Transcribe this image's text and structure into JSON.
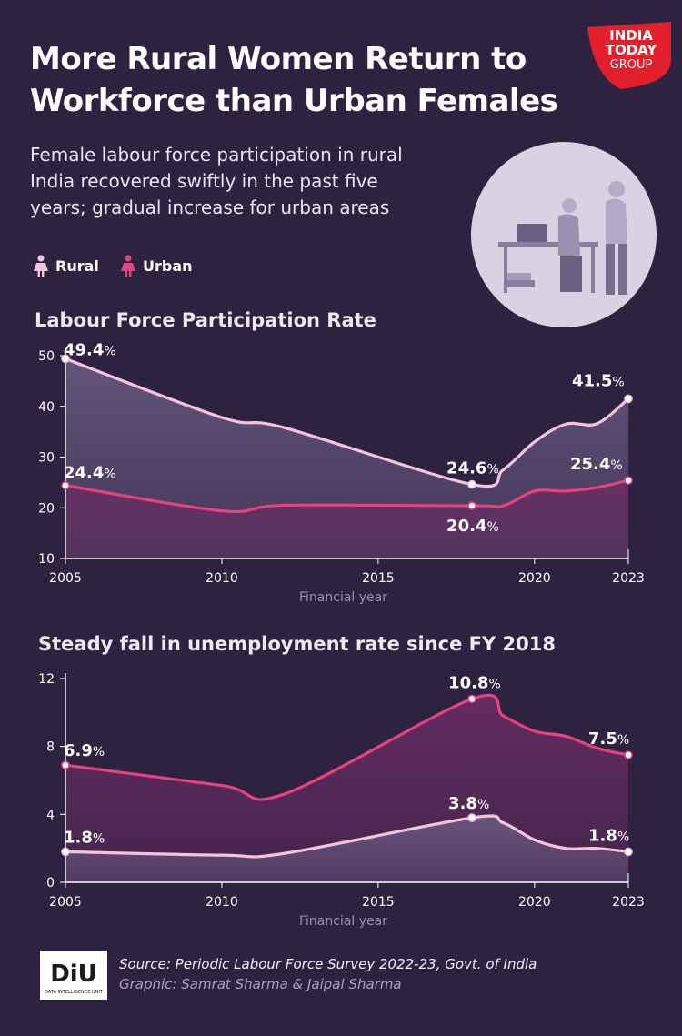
{
  "header": {
    "title_line1": "More Rural Women Return to",
    "title_line2": "Workforce than Urban Females",
    "subtitle_line1": "Female labour force participation in rural",
    "subtitle_line2": "India recovered swiftly in the past five",
    "subtitle_line3": "years; gradual increase for urban areas",
    "logo_line1": "INDIA",
    "logo_line2": "TODAY",
    "logo_line3": "GROUP"
  },
  "legend": {
    "rural": "Rural",
    "urban": "Urban"
  },
  "colors": {
    "background": "#2e2241",
    "rural": "#f6c3df",
    "urban": "#e3437e",
    "logo_red": "#e2202b"
  },
  "chart_data": [
    {
      "type": "area",
      "title": "Labour Force Participation Rate",
      "xlabel": "Financial year",
      "ylabel": "",
      "xlim": [
        2005,
        2023
      ],
      "ylim": [
        10,
        50
      ],
      "x_ticks": [
        "2005",
        "2010",
        "2015",
        "2020",
        "2023"
      ],
      "y_ticks": [
        "50",
        "40",
        "30",
        "20",
        "10"
      ],
      "grid": false,
      "series": [
        {
          "name": "Rural",
          "color": "#f6c3df",
          "x": [
            2005,
            2010,
            2012,
            2018,
            2019,
            2020,
            2021,
            2022,
            2023
          ],
          "values": [
            49.4,
            37.8,
            35.8,
            24.6,
            27.5,
            33.0,
            36.5,
            36.6,
            41.5
          ],
          "labels": [
            {
              "x": 2005,
              "text": "49.4"
            },
            {
              "x": 2018,
              "text": "24.6"
            },
            {
              "x": 2023,
              "text": "41.5"
            }
          ]
        },
        {
          "name": "Urban",
          "color": "#e3437e",
          "x": [
            2005,
            2010,
            2012,
            2018,
            2019,
            2020,
            2021,
            2022,
            2023
          ],
          "values": [
            24.4,
            19.4,
            20.5,
            20.4,
            20.4,
            23.3,
            23.3,
            24.0,
            25.4
          ],
          "labels": [
            {
              "x": 2005,
              "text": "24.4"
            },
            {
              "x": 2018,
              "text": "20.4"
            },
            {
              "x": 2023,
              "text": "25.4"
            }
          ]
        }
      ]
    },
    {
      "type": "area",
      "title": "Steady fall in unemployment rate since FY 2018",
      "xlabel": "Financial year",
      "ylabel": "",
      "xlim": [
        2005,
        2023
      ],
      "ylim": [
        0,
        12
      ],
      "x_ticks": [
        "2005",
        "2010",
        "2015",
        "2020",
        "2023"
      ],
      "y_ticks": [
        "12",
        "8",
        "4",
        "0"
      ],
      "grid": false,
      "series": [
        {
          "name": "Urban",
          "color": "#e3437e",
          "x": [
            2005,
            2010,
            2012,
            2018,
            2019,
            2020,
            2021,
            2022,
            2023
          ],
          "values": [
            6.9,
            5.7,
            5.2,
            10.8,
            9.8,
            8.9,
            8.6,
            7.9,
            7.5
          ],
          "labels": [
            {
              "x": 2005,
              "text": "6.9"
            },
            {
              "x": 2018,
              "text": "10.8"
            },
            {
              "x": 2023,
              "text": "7.5"
            }
          ]
        },
        {
          "name": "Rural",
          "color": "#f6c3df",
          "x": [
            2005,
            2010,
            2012,
            2018,
            2019,
            2020,
            2021,
            2022,
            2023
          ],
          "values": [
            1.8,
            1.6,
            1.7,
            3.8,
            3.5,
            2.5,
            2.0,
            2.0,
            1.8
          ],
          "labels": [
            {
              "x": 2005,
              "text": "1.8"
            },
            {
              "x": 2018,
              "text": "3.8"
            },
            {
              "x": 2023,
              "text": "1.8"
            }
          ]
        }
      ]
    }
  ],
  "footer": {
    "logo_main": "DiU",
    "logo_sub": "DATA INTELLIGENCE UNIT",
    "source": "Source: Periodic Labour Force Survey 2022-23, Govt. of India",
    "credit": "Graphic: Samrat Sharma & Jaipal Sharma"
  }
}
